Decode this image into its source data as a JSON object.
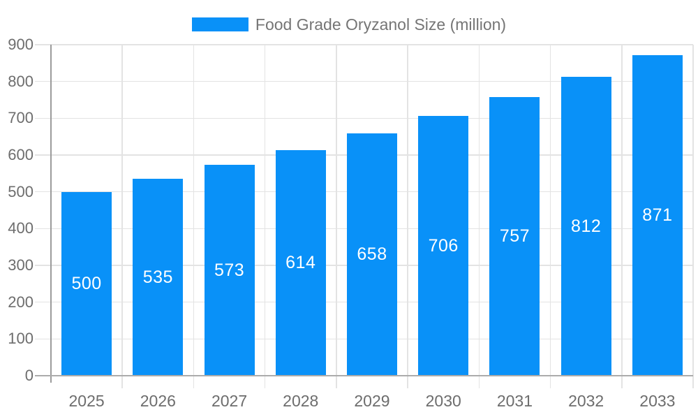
{
  "chart_data": {
    "type": "bar",
    "title": "Food Grade Oryzanol Size (million)",
    "categories": [
      "2025",
      "2026",
      "2027",
      "2028",
      "2029",
      "2030",
      "2031",
      "2032",
      "2033"
    ],
    "series": [
      {
        "name": "Food Grade Oryzanol Size (million)",
        "values": [
          500,
          535,
          573,
          614,
          658,
          706,
          757,
          812,
          871
        ]
      }
    ],
    "bar_value_labels": [
      "500",
      "535",
      "573",
      "614",
      "658",
      "706",
      "757",
      "812",
      "871"
    ],
    "xlabel": "",
    "ylabel": "",
    "ylim": [
      0,
      900
    ],
    "yticks": [
      0,
      100,
      200,
      300,
      400,
      500,
      600,
      700,
      800,
      900
    ],
    "grid": true,
    "legend_position": "top"
  },
  "legend": {
    "label": "Food Grade Oryzanol Size (million)"
  },
  "colors": {
    "bar": "#0991F8",
    "bar_label": "#FFFFFF",
    "grid": "#E3E3E3",
    "y_axis_line": "#9B9B9B",
    "x_axis_line": "#ABABAB",
    "axis_label": "#6D6D6D",
    "legend_text": "#757575",
    "background": "#FFFFFF"
  }
}
